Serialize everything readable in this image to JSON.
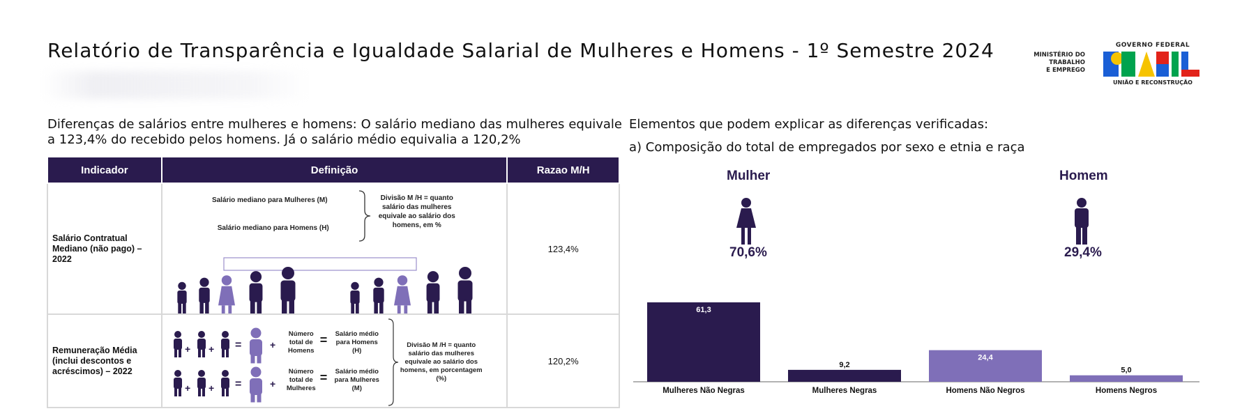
{
  "header": {
    "title": "Relatório de Transparência e Igualdade Salarial de Mulheres e Homens - 1º Semestre 2024",
    "ministry_logo": [
      "MINISTÉRIO DO",
      "TRABALHO",
      "E EMPREGO"
    ],
    "gov_logo_top": "GOVERNO FEDERAL",
    "gov_logo_bottom": "UNIÃO E RECONSTRUÇÃO",
    "gov_logo_word": "BRASIL"
  },
  "left": {
    "intro": "Diferenças de salários entre mulheres e homens: O salário mediano das mulheres equivale a 123,4% do recebido pelos homens. Já o salário médio equivalia a 120,2%",
    "table": {
      "headers": [
        "Indicador",
        "Definição",
        "Razao M/H"
      ],
      "rows": [
        {
          "indicator": "Salário Contratual Mediano (não pago) – 2022",
          "def_line1": "Salário mediano para Mulheres (M)",
          "def_line2": "Salário mediano para Homens (H)",
          "def_note": "Divisão M /H = quanto salário das mulheres equivale ao salário dos homens, em %",
          "ratio": "123,4%"
        },
        {
          "indicator": "Remuneração Média (inclui descontos e acréscimos) – 2022",
          "def_total_men": "Número total de Homens",
          "def_avg_men": "Salário médio para Homens (H)",
          "def_total_women": "Número total de Mulheres",
          "def_avg_women": "Salário médio para Mulheres (M)",
          "def_note": "Divisão M /H = quanto salário das mulheres equivale ao salário dos homens, em porcentagem (%)",
          "ratio": "120,2%"
        }
      ]
    }
  },
  "right": {
    "intro": "Elementos que podem explicar as diferenças verificadas:",
    "subtitle": "a) Composição do total de empregados por sexo e etnia e raça",
    "woman_label": "Mulher",
    "woman_pct": "70,6%",
    "man_label": "Homem",
    "man_pct": "29,4%"
  },
  "colors": {
    "dark": "#2a1b4e",
    "light": "#7f6fb8"
  },
  "chart_data": {
    "type": "bar",
    "categories": [
      "Mulheres Não Negras",
      "Mulheres Negras",
      "Homens Não Negros",
      "Homens Negros"
    ],
    "values": [
      61.3,
      9.2,
      24.4,
      5.0
    ],
    "labels": [
      "61,3",
      "9,2",
      "24,4",
      "5,0"
    ],
    "colors": [
      "#2a1b4e",
      "#2a1b4e",
      "#7f6fb8",
      "#7f6fb8"
    ],
    "ylim": [
      0,
      61.3
    ]
  }
}
